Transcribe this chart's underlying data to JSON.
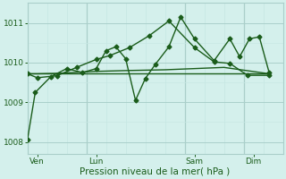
{
  "background_color": "#d4f0ec",
  "plot_bg_color": "#d4f0ec",
  "grid_major_color": "#aacfca",
  "grid_minor_color": "#c8e8e4",
  "line_color": "#1a5c1a",
  "xlabel": "Pression niveau de la mer( hPa )",
  "ylim": [
    1007.7,
    1011.5
  ],
  "yticks": [
    1008,
    1009,
    1010,
    1011
  ],
  "xtick_labels": [
    "Ven",
    "Lun",
    "Sam",
    "Dim"
  ],
  "xtick_positions": [
    0.5,
    3.5,
    8.5,
    11.5
  ],
  "xlim": [
    0,
    13
  ],
  "series1": {
    "x": [
      0.0,
      0.4,
      1.2,
      2.0,
      2.8,
      3.5,
      4.0,
      4.5,
      5.0,
      5.5,
      6.0,
      6.5,
      7.2,
      7.8,
      8.5,
      9.5,
      10.3,
      10.8,
      11.3,
      11.8,
      12.3
    ],
    "y": [
      1008.05,
      1009.25,
      1009.65,
      1009.85,
      1009.75,
      1009.85,
      1010.3,
      1010.4,
      1010.1,
      1009.05,
      1009.6,
      1009.95,
      1010.4,
      1011.15,
      1010.6,
      1010.05,
      1010.6,
      1010.15,
      1010.6,
      1010.65,
      1009.75
    ],
    "marker": "D",
    "lw": 1.0,
    "ms": 2.5
  },
  "series2": {
    "x": [
      0.0,
      0.5,
      1.5,
      3.5,
      5.0,
      7.0,
      8.5,
      10.0,
      12.3
    ],
    "y": [
      1009.72,
      1009.72,
      1009.73,
      1009.78,
      1009.8,
      1009.82,
      1009.85,
      1009.88,
      1009.72
    ],
    "marker": null,
    "lw": 1.0,
    "ms": 0
  },
  "series3": {
    "x": [
      0.0,
      12.3
    ],
    "y": [
      1009.72,
      1009.72
    ],
    "marker": null,
    "lw": 1.0,
    "ms": 0
  },
  "series4": {
    "x": [
      0.0,
      0.5,
      1.5,
      2.5,
      3.5,
      4.2,
      5.2,
      6.2,
      7.2,
      8.5,
      9.5,
      10.3,
      11.2,
      12.3
    ],
    "y": [
      1009.72,
      1009.62,
      1009.67,
      1009.88,
      1010.08,
      1010.18,
      1010.38,
      1010.68,
      1011.05,
      1010.38,
      1010.02,
      1009.98,
      1009.68,
      1009.68
    ],
    "marker": "D",
    "lw": 1.0,
    "ms": 2.5
  },
  "major_vlines": [
    0,
    3,
    8,
    11
  ],
  "minor_vlines": [
    1,
    2,
    4,
    5,
    6,
    7,
    9,
    10,
    12
  ],
  "label_fontsize": 6.5,
  "xlabel_fontsize": 7.5
}
